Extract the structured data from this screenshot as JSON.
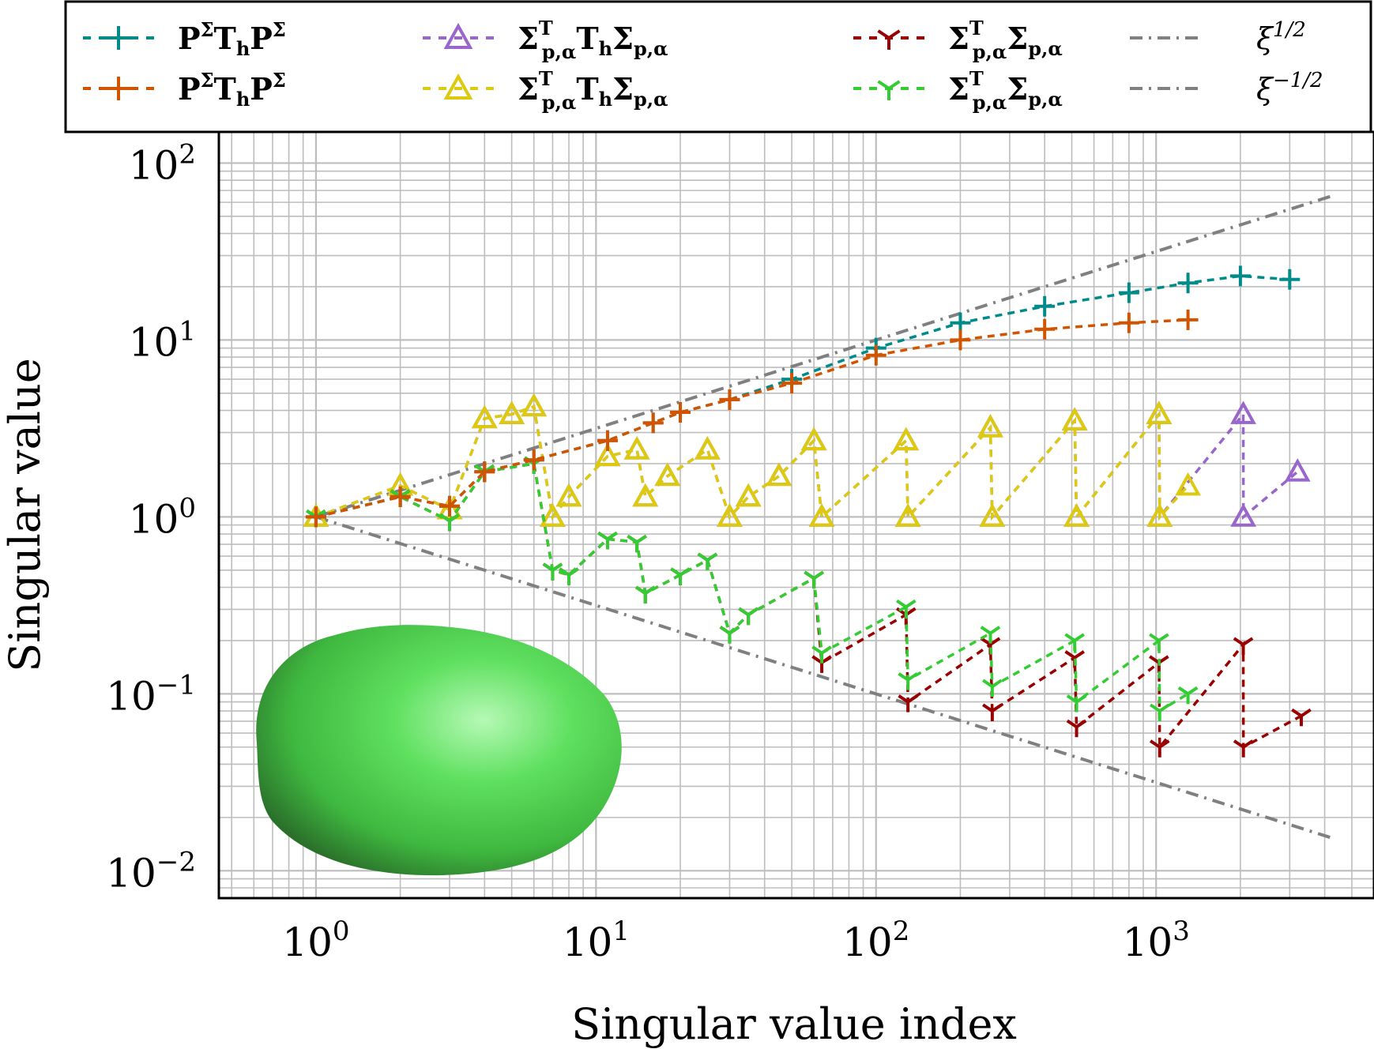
{
  "chart_data": {
    "type": "line",
    "xscale": "log",
    "yscale": "log",
    "xlim": [
      0.45,
      6000
    ],
    "ylim": [
      0.007,
      150
    ],
    "xlabel": "Singular value index",
    "ylabel": "Singular value",
    "xticks": [
      {
        "value": 1,
        "base": "10",
        "exp": "0"
      },
      {
        "value": 10,
        "base": "10",
        "exp": "1"
      },
      {
        "value": 100,
        "base": "10",
        "exp": "2"
      },
      {
        "value": 1000,
        "base": "10",
        "exp": "3"
      }
    ],
    "yticks": [
      {
        "value": 100,
        "base": "10",
        "exp": "2"
      },
      {
        "value": 10,
        "base": "10",
        "exp": "1"
      },
      {
        "value": 1,
        "base": "10",
        "exp": "0"
      },
      {
        "value": 0.1,
        "base": "10",
        "exp": "−1"
      },
      {
        "value": 0.01,
        "base": "10",
        "exp": "−2"
      }
    ],
    "grid": true,
    "legend_position": "top",
    "series": [
      {
        "key": "pst_teal",
        "color": "#008b8b",
        "marker": "plus",
        "legend": {
          "main": "P",
          "sup1": "Σ",
          "mid": "T",
          "sub": "h",
          "main2": "P",
          "sup2": "Σ"
        },
        "points": [
          [
            1,
            1.0
          ],
          [
            2,
            1.3
          ],
          [
            3,
            1.15
          ],
          [
            4,
            1.8
          ],
          [
            6,
            2.1
          ],
          [
            11,
            2.7
          ],
          [
            16,
            3.4
          ],
          [
            20,
            3.9
          ],
          [
            30,
            4.6
          ],
          [
            50,
            6.0
          ],
          [
            100,
            9.0
          ],
          [
            200,
            12.5
          ],
          [
            400,
            15.5
          ],
          [
            800,
            18.5
          ],
          [
            1300,
            21
          ],
          [
            2000,
            23
          ],
          [
            3000,
            22
          ]
        ]
      },
      {
        "key": "pst_orange",
        "color": "#d35400",
        "marker": "plus",
        "legend": {
          "main": "P",
          "sup1": "Σ",
          "mid": "T",
          "sub": "h",
          "main2": "P",
          "sup2": "Σ"
        },
        "points": [
          [
            1,
            1.0
          ],
          [
            2,
            1.3
          ],
          [
            3,
            1.15
          ],
          [
            4,
            1.8
          ],
          [
            6,
            2.1
          ],
          [
            11,
            2.7
          ],
          [
            16,
            3.4
          ],
          [
            20,
            3.9
          ],
          [
            30,
            4.6
          ],
          [
            50,
            5.7
          ],
          [
            100,
            8.2
          ],
          [
            200,
            10
          ],
          [
            400,
            11.5
          ],
          [
            800,
            12.5
          ],
          [
            1300,
            13
          ]
        ]
      },
      {
        "key": "sts_purple",
        "color": "#9966cc",
        "marker": "triangle",
        "legend": {
          "main": "Σ",
          "sup": "T",
          "sub": "p,α",
          "mid": "T",
          "midsub": "h",
          "end": "Σ",
          "endsub": "p,α"
        },
        "points": [
          [
            1,
            1.0
          ],
          [
            2,
            1.5
          ],
          [
            3,
            1.1
          ],
          [
            4,
            3.6
          ],
          [
            5,
            3.8
          ],
          [
            6,
            4.2
          ],
          [
            7,
            1.0
          ],
          [
            8,
            1.3
          ],
          [
            11,
            2.2
          ],
          [
            14,
            2.4
          ],
          [
            15,
            1.3
          ],
          [
            18,
            1.7
          ],
          [
            25,
            2.4
          ],
          [
            30,
            1.0
          ],
          [
            35,
            1.3
          ],
          [
            45,
            1.7
          ],
          [
            60,
            2.7
          ],
          [
            64,
            1.0
          ],
          [
            128,
            2.7
          ],
          [
            130,
            1.0
          ],
          [
            256,
            3.2
          ],
          [
            260,
            1.0
          ],
          [
            512,
            3.5
          ],
          [
            520,
            1.0
          ],
          [
            1024,
            3.8
          ],
          [
            1030,
            1.0
          ],
          [
            2048,
            3.8
          ],
          [
            2050,
            1.0
          ],
          [
            3200,
            1.8
          ]
        ]
      },
      {
        "key": "sts_yellow",
        "color": "#ddc90d",
        "marker": "triangle",
        "legend": {
          "main": "Σ",
          "sup": "T",
          "sub": "p,α",
          "mid": "T",
          "midsub": "h",
          "end": "Σ",
          "endsub": "p,α"
        },
        "points": [
          [
            1,
            1.0
          ],
          [
            2,
            1.5
          ],
          [
            3,
            1.1
          ],
          [
            4,
            3.6
          ],
          [
            5,
            3.8
          ],
          [
            6,
            4.2
          ],
          [
            7,
            1.0
          ],
          [
            8,
            1.3
          ],
          [
            11,
            2.2
          ],
          [
            14,
            2.4
          ],
          [
            15,
            1.3
          ],
          [
            18,
            1.7
          ],
          [
            25,
            2.4
          ],
          [
            30,
            1.0
          ],
          [
            35,
            1.3
          ],
          [
            45,
            1.7
          ],
          [
            60,
            2.7
          ],
          [
            64,
            1.0
          ],
          [
            128,
            2.7
          ],
          [
            130,
            1.0
          ],
          [
            256,
            3.2
          ],
          [
            260,
            1.0
          ],
          [
            512,
            3.5
          ],
          [
            520,
            1.0
          ],
          [
            1024,
            3.8
          ],
          [
            1030,
            1.0
          ],
          [
            1300,
            1.5
          ]
        ]
      },
      {
        "key": "ss_red",
        "color": "#990000",
        "marker": "tri",
        "legend": {
          "main": "Σ",
          "sup": "T",
          "sub": "p,α",
          "end": "Σ",
          "endsub": "p,α"
        },
        "points": [
          [
            1,
            1.0
          ],
          [
            2,
            1.3
          ],
          [
            3,
            0.95
          ],
          [
            4,
            1.8
          ],
          [
            6,
            2.0
          ],
          [
            7,
            0.5
          ],
          [
            8,
            0.47
          ],
          [
            11,
            0.75
          ],
          [
            14,
            0.72
          ],
          [
            15,
            0.37
          ],
          [
            20,
            0.47
          ],
          [
            25,
            0.57
          ],
          [
            30,
            0.22
          ],
          [
            35,
            0.28
          ],
          [
            60,
            0.45
          ],
          [
            64,
            0.15
          ],
          [
            128,
            0.28
          ],
          [
            130,
            0.09
          ],
          [
            256,
            0.19
          ],
          [
            260,
            0.08
          ],
          [
            512,
            0.16
          ],
          [
            520,
            0.065
          ],
          [
            1024,
            0.15
          ],
          [
            1030,
            0.05
          ],
          [
            2048,
            0.19
          ],
          [
            2050,
            0.05
          ],
          [
            3300,
            0.075
          ]
        ]
      },
      {
        "key": "ss_green",
        "color": "#33cc33",
        "marker": "tri",
        "legend": {
          "main": "Σ",
          "sup": "T",
          "sub": "p,α",
          "end": "Σ",
          "endsub": "p,α"
        },
        "points": [
          [
            1,
            1.0
          ],
          [
            2,
            1.3
          ],
          [
            3,
            0.95
          ],
          [
            4,
            1.8
          ],
          [
            6,
            2.0
          ],
          [
            7,
            0.5
          ],
          [
            8,
            0.47
          ],
          [
            11,
            0.75
          ],
          [
            14,
            0.72
          ],
          [
            15,
            0.37
          ],
          [
            20,
            0.47
          ],
          [
            25,
            0.57
          ],
          [
            30,
            0.22
          ],
          [
            35,
            0.28
          ],
          [
            60,
            0.45
          ],
          [
            64,
            0.17
          ],
          [
            128,
            0.31
          ],
          [
            130,
            0.12
          ],
          [
            256,
            0.22
          ],
          [
            260,
            0.11
          ],
          [
            512,
            0.2
          ],
          [
            520,
            0.09
          ],
          [
            1024,
            0.2
          ],
          [
            1030,
            0.08
          ],
          [
            1300,
            0.1
          ]
        ]
      },
      {
        "key": "ref_pos",
        "color": "#808080",
        "marker": "none",
        "dash": "dashdot",
        "legend": {
          "xi": "ξ",
          "exp": "1/2"
        },
        "points": [
          [
            1,
            1.0
          ],
          [
            4200,
            64.8
          ]
        ]
      },
      {
        "key": "ref_neg",
        "color": "#808080",
        "marker": "none",
        "dash": "dashdot",
        "legend": {
          "xi": "ξ",
          "exp": "−1/2"
        },
        "points": [
          [
            1,
            1.0
          ],
          [
            4200,
            0.0154
          ]
        ]
      }
    ]
  },
  "inset": {
    "name": "green-ellipsoid-shape",
    "colors": [
      "#2f7d2f",
      "#4cd84c",
      "#9ff59f"
    ]
  }
}
